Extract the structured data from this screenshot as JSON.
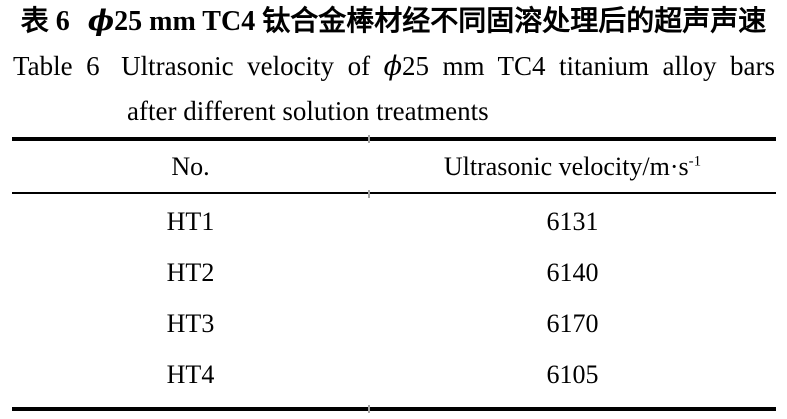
{
  "page": {
    "background": "#ffffff",
    "text_color": "#000000",
    "rule_color": "#000000"
  },
  "caption_cn": {
    "label": "表 6",
    "phi": "ϕ",
    "text": "25 mm TC4 钛合金棒材经不同固溶处理后的超声声速"
  },
  "caption_en": {
    "label": "Table 6",
    "pre": "Ultrasonic velocity of",
    "phi": "ϕ",
    "post": "25 mm TC4 titanium alloy bars",
    "line2": "after different solution treatments"
  },
  "table": {
    "columns": [
      {
        "header": "No."
      },
      {
        "header": "Ultrasonic velocity/m·s",
        "header_sup": "-1"
      }
    ],
    "rows": [
      {
        "no": "HT1",
        "velocity": "6131"
      },
      {
        "no": "HT2",
        "velocity": "6140"
      },
      {
        "no": "HT3",
        "velocity": "6170"
      },
      {
        "no": "HT4",
        "velocity": "6105"
      }
    ]
  },
  "chart_data": {
    "type": "table",
    "columns": [
      "No.",
      "Ultrasonic velocity/m·s⁻¹"
    ],
    "rows": [
      [
        "HT1",
        "6131"
      ],
      [
        "HT2",
        "6140"
      ],
      [
        "HT3",
        "6170"
      ],
      [
        "HT4",
        "6105"
      ]
    ],
    "title_cn": "表 6 ϕ25 mm TC4 钛合金棒材经不同固溶处理后的超声声速",
    "title_en": "Table 6 Ultrasonic velocity of ϕ25 mm TC4 titanium alloy bars after different solution treatments"
  }
}
